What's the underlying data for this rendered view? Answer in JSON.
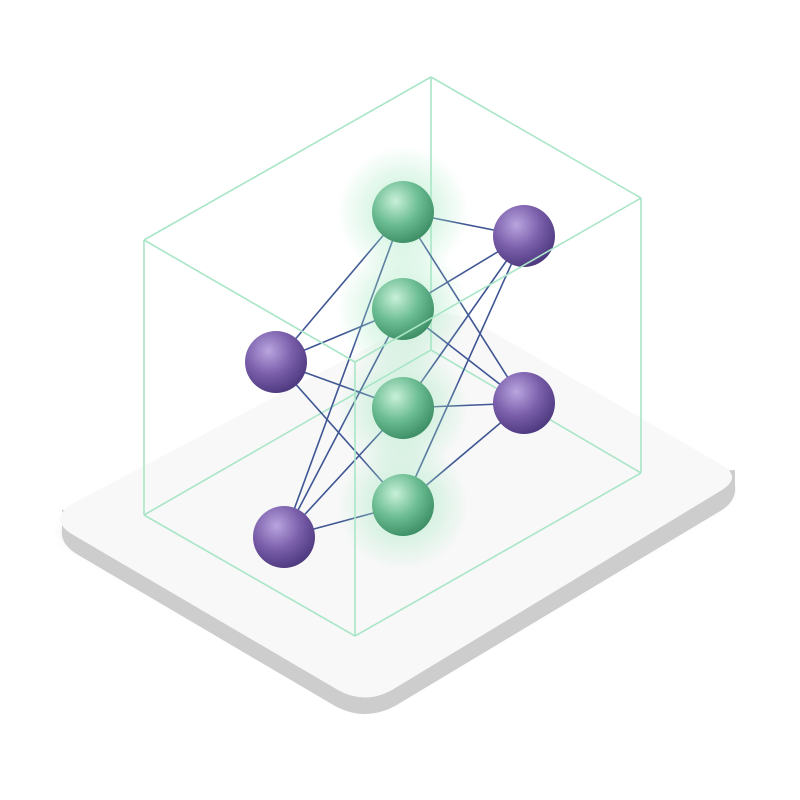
{
  "illustration": {
    "subject": "neural-network-cube",
    "colors": {
      "background": "#ffffff",
      "platform_top": "#f8f8f8",
      "platform_side": "#cdcdcd",
      "cube_edge": "#a9e6c7",
      "edge_line": "#3f5694",
      "green_node": "#6bbc92",
      "green_node_light": "#c8f0d9",
      "green_node_dark": "#3e8f66",
      "green_glow": "#a6e8c2",
      "purple_node": "#7a5eaa",
      "purple_node_light": "#b9a5df",
      "purple_node_dark": "#4e3a80"
    },
    "nodes": [
      {
        "id": "h1",
        "group": "hidden",
        "color": "green"
      },
      {
        "id": "h2",
        "group": "hidden",
        "color": "green"
      },
      {
        "id": "h3",
        "group": "hidden",
        "color": "green"
      },
      {
        "id": "h4",
        "group": "hidden",
        "color": "green"
      },
      {
        "id": "in1",
        "group": "input",
        "color": "purple"
      },
      {
        "id": "in2",
        "group": "input",
        "color": "purple"
      },
      {
        "id": "out1",
        "group": "output",
        "color": "purple"
      },
      {
        "id": "out2",
        "group": "output",
        "color": "purple"
      }
    ],
    "connections": [
      [
        "in1",
        "h1"
      ],
      [
        "in1",
        "h2"
      ],
      [
        "in1",
        "h3"
      ],
      [
        "in1",
        "h4"
      ],
      [
        "in2",
        "h1"
      ],
      [
        "in2",
        "h2"
      ],
      [
        "in2",
        "h3"
      ],
      [
        "in2",
        "h4"
      ],
      [
        "out1",
        "h1"
      ],
      [
        "out1",
        "h2"
      ],
      [
        "out1",
        "h3"
      ],
      [
        "out1",
        "h4"
      ],
      [
        "out2",
        "h1"
      ],
      [
        "out2",
        "h2"
      ],
      [
        "out2",
        "h3"
      ],
      [
        "out2",
        "h4"
      ]
    ]
  }
}
